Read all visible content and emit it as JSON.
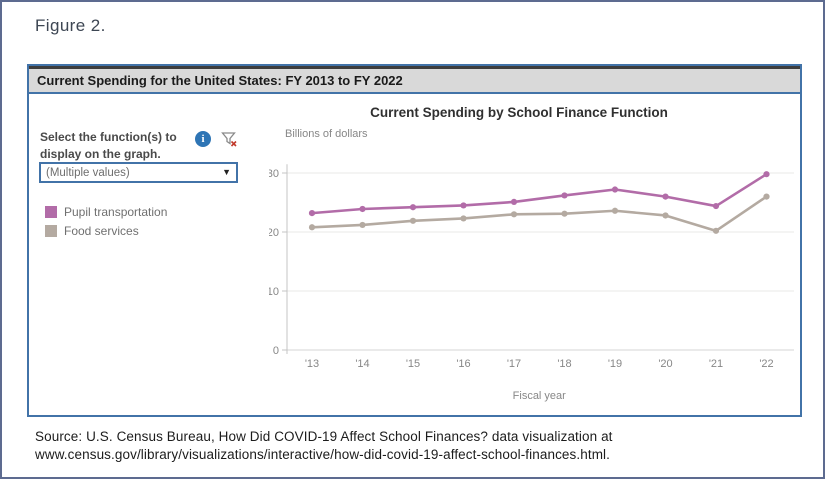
{
  "figure": {
    "label": "Figure 2."
  },
  "viz": {
    "header_title": "Current Spending for the United States: FY 2013 to FY 2022",
    "sidebar": {
      "prompt_line1": "Select the function(s) to",
      "prompt_line2": "display on the graph.",
      "dropdown_value": "(Multiple values)",
      "icons": {
        "info_glyph": "i",
        "dropdown_caret": "▼"
      },
      "legend": [
        {
          "label": "Pupil transportation",
          "color": "#b26ca8"
        },
        {
          "label": "Food services",
          "color": "#b4aaa1"
        }
      ]
    }
  },
  "chart_data": {
    "type": "line",
    "title": "Current Spending by School Finance Function",
    "ylabel": "Billions of dollars",
    "xlabel": "Fiscal year",
    "categories": [
      "'13",
      "'14",
      "'15",
      "'16",
      "'17",
      "'18",
      "'19",
      "'20",
      "'21",
      "'22"
    ],
    "series": [
      {
        "name": "Pupil transportation",
        "color": "#b26ca8",
        "values": [
          23.2,
          23.9,
          24.2,
          24.5,
          25.1,
          26.2,
          27.2,
          26.0,
          24.4,
          29.8
        ]
      },
      {
        "name": "Food services",
        "color": "#b4aaa1",
        "values": [
          20.8,
          21.2,
          21.9,
          22.3,
          23.0,
          23.1,
          23.6,
          22.8,
          20.2,
          26.0
        ]
      }
    ],
    "yticks": [
      0,
      10,
      20,
      30
    ],
    "ylim": [
      0,
      32
    ],
    "grid": true,
    "legend_position": "left-panel"
  },
  "source": {
    "line1": "Source: U.S. Census Bureau, How Did COVID-19 Affect School Finances? data visualization at",
    "line2": "www.census.gov/library/visualizations/interactive/how-did-covid-19-affect-school-finances.html."
  }
}
